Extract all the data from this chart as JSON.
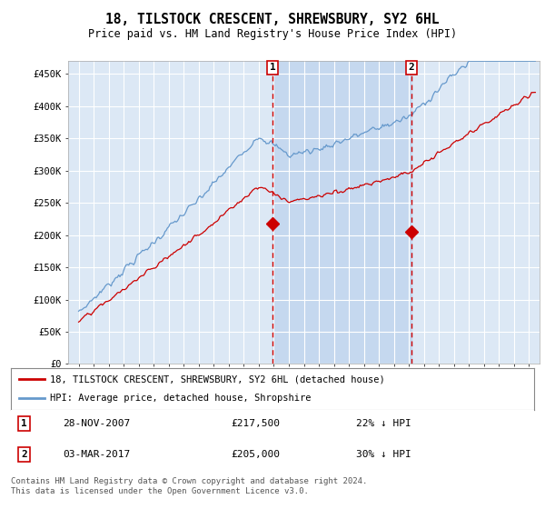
{
  "title": "18, TILSTOCK CRESCENT, SHREWSBURY, SY2 6HL",
  "subtitle": "Price paid vs. HM Land Registry's House Price Index (HPI)",
  "title_fontsize": 11,
  "subtitle_fontsize": 9,
  "background_color": "#ffffff",
  "plot_bg_color": "#dce8f5",
  "shade_color": "#c5d8ef",
  "grid_color": "#ffffff",
  "ylim": [
    0,
    470000
  ],
  "yticks": [
    0,
    50000,
    100000,
    150000,
    200000,
    250000,
    300000,
    350000,
    400000,
    450000
  ],
  "ytick_labels": [
    "£0",
    "£50K",
    "£100K",
    "£150K",
    "£200K",
    "£250K",
    "£300K",
    "£350K",
    "£400K",
    "£450K"
  ],
  "sale1_date": "28-NOV-2007",
  "sale1_price": 217500,
  "sale1_label": "1",
  "sale1_note": "22% ↓ HPI",
  "sale2_date": "03-MAR-2017",
  "sale2_label": "2",
  "sale2_price": 205000,
  "sale2_note": "30% ↓ HPI",
  "legend_line1": "18, TILSTOCK CRESCENT, SHREWSBURY, SY2 6HL (detached house)",
  "legend_line2": "HPI: Average price, detached house, Shropshire",
  "footer": "Contains HM Land Registry data © Crown copyright and database right 2024.\nThis data is licensed under the Open Government Licence v3.0.",
  "hpi_color": "#6699cc",
  "price_color": "#cc0000",
  "dashed_color": "#cc0000",
  "marker_color": "#cc0000",
  "sale1_year_float": 2007.9167,
  "sale2_year_float": 2017.1667
}
